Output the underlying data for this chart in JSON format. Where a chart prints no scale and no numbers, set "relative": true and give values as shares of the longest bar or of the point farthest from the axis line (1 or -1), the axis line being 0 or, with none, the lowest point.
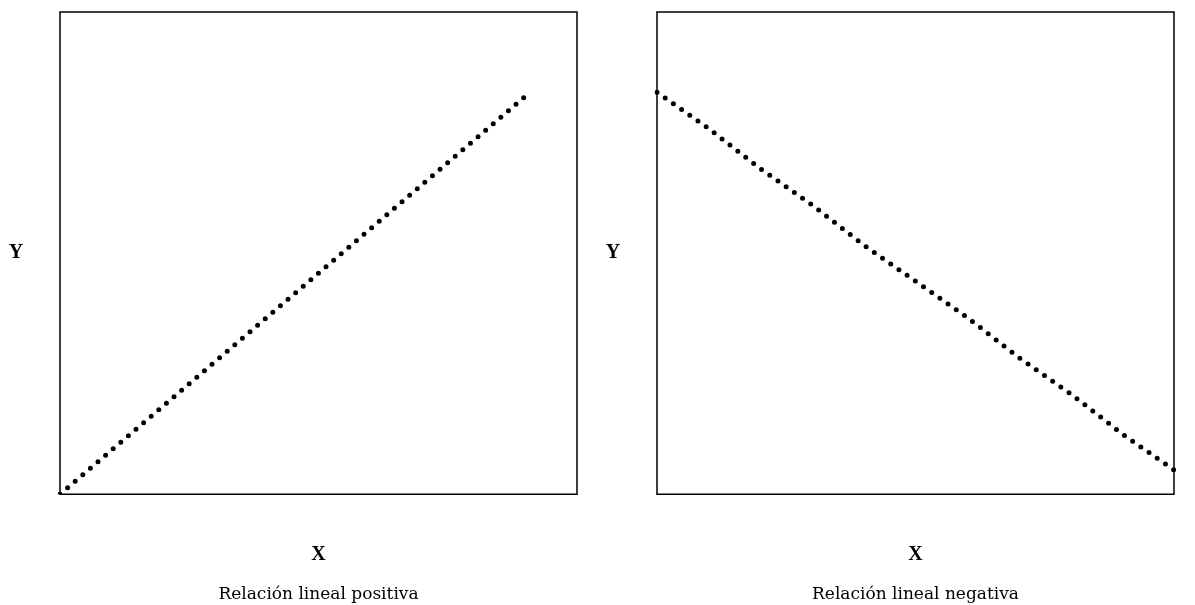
{
  "chart_data": [
    {
      "type": "line",
      "title": "Relación lineal positiva",
      "xlabel": "X",
      "ylabel": "Y",
      "relative": true,
      "line_style": "dotted",
      "marker": "none",
      "grid": false,
      "legend": false,
      "categories": [
        null,
        null,
        null,
        null,
        null,
        null,
        null,
        null,
        null,
        null,
        null,
        null
      ],
      "series": [
        {
          "color": "#000000",
          "values": [
            0,
            0.1,
            0.2,
            0.3,
            0.4,
            0.5,
            0.6,
            0.7,
            0.8,
            0.9,
            1,
            null
          ]
        }
      ]
    },
    {
      "type": "line",
      "title": "Relación lineal negativa",
      "xlabel": "X",
      "ylabel": "Y",
      "relative": true,
      "line_style": "dotted",
      "marker": "none",
      "grid": false,
      "legend": false,
      "categories": [
        null,
        null,
        null,
        null,
        null,
        null,
        null,
        null,
        null,
        null,
        null
      ],
      "series": [
        {
          "color": "#000000",
          "values": [
            1,
            0.91,
            0.81,
            0.72,
            0.62,
            0.53,
            0.44,
            0.34,
            0.25,
            0.15,
            0.06
          ]
        }
      ]
    }
  ]
}
